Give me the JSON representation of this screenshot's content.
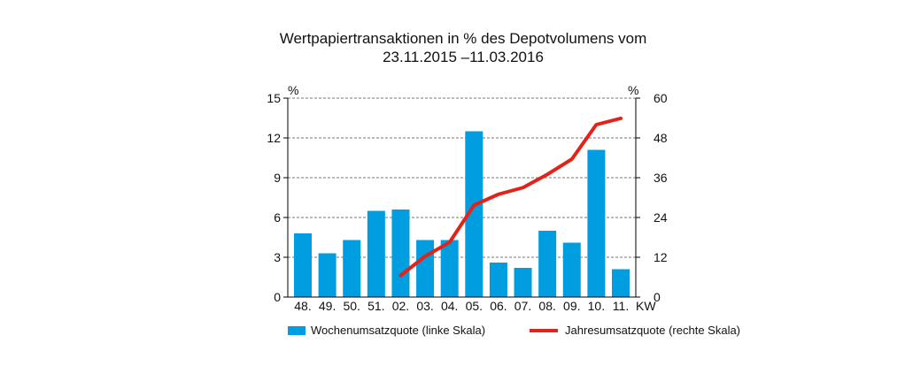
{
  "chart_data": {
    "type": "bar",
    "title_line1": "Wertpapiertransaktionen in % des Depotvolumens vom",
    "title_line2": "23.11.2015 –11.03.2016",
    "categories": [
      "48.",
      "49.",
      "50.",
      "51.",
      "02.",
      "03.",
      "04.",
      "05.",
      "06.",
      "07.",
      "08.",
      "09.",
      "10.",
      "11."
    ],
    "xlabel": "KW",
    "ylabel_left": "%",
    "ylabel_right": "%",
    "ylim_left": [
      0,
      15
    ],
    "yticks_left": [
      "0",
      "3",
      "6",
      "9",
      "12",
      "15"
    ],
    "ylim_right": [
      0,
      60
    ],
    "yticks_right": [
      "0",
      "12",
      "24",
      "36",
      "48",
      "60"
    ],
    "grid": true,
    "series": [
      {
        "name": "Wochenumsatzquote (linke Skala)",
        "type": "bar",
        "axis": "left",
        "color": "#009ee0",
        "values": [
          4.8,
          3.3,
          4.3,
          6.5,
          6.6,
          4.3,
          4.3,
          12.5,
          2.6,
          2.2,
          5.0,
          4.1,
          11.1,
          2.1
        ]
      },
      {
        "name": "Jahresumsatzquote (rechte Skala)",
        "type": "line",
        "axis": "right",
        "color": "#e2231a",
        "values": [
          null,
          null,
          null,
          null,
          6.5,
          12.3,
          16.5,
          27.7,
          31,
          33,
          37,
          41.6,
          52,
          53.9
        ]
      }
    ],
    "legend": "bottom"
  }
}
